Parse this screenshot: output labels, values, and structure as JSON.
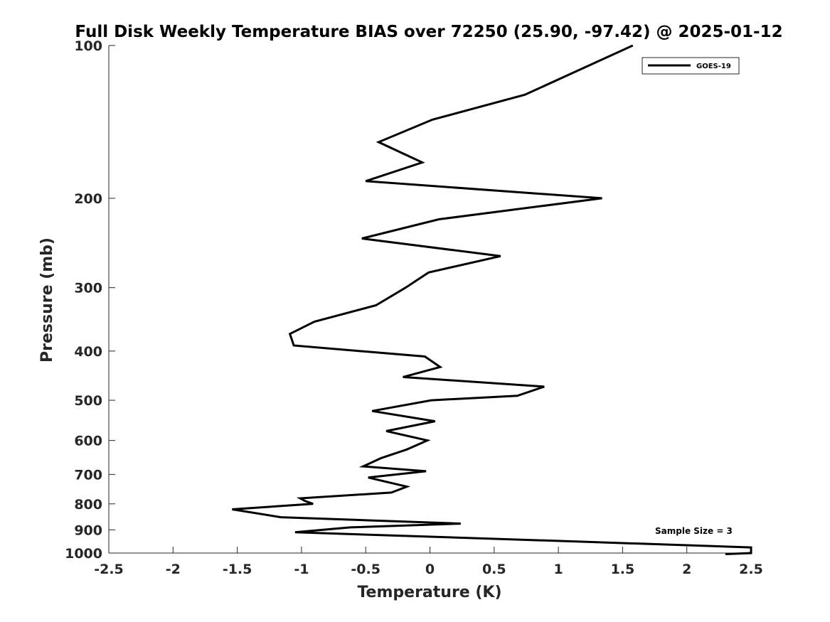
{
  "chart_data": {
    "type": "line",
    "title": "Full Disk Weekly Temperature BIAS over 72250 (25.90, -97.42) @ 2025-01-12",
    "xlabel": "Temperature (K)",
    "ylabel": "Pressure (mb)",
    "xlim": [
      -2.5,
      2.5
    ],
    "ylim": [
      100,
      1000
    ],
    "y_scale": "log",
    "y_direction": "reversed",
    "x_ticks": [
      "-2.5",
      "-2",
      "-1.5",
      "-1",
      "-0.5",
      "0",
      "0.5",
      "1",
      "1.5",
      "2",
      "2.5"
    ],
    "y_ticks": [
      "100",
      "200",
      "300",
      "400",
      "500",
      "600",
      "700",
      "800",
      "900",
      "1000"
    ],
    "grid": false,
    "legend_position": "top-right",
    "annotation": "Sample Size = 3",
    "line_color": "#000000",
    "series": [
      {
        "name": "GOES-19",
        "x": [
          1.58,
          0.74,
          0.02,
          -0.4,
          -0.06,
          -0.5,
          1.34,
          0.07,
          -0.53,
          0.55,
          -0.01,
          -0.19,
          -0.42,
          -0.9,
          -1.09,
          -1.06,
          -0.04,
          0.08,
          -0.21,
          0.89,
          0.68,
          0.01,
          -0.45,
          0.04,
          -0.34,
          -0.02,
          -0.18,
          -0.38,
          -0.52,
          -0.03,
          -0.48,
          -0.18,
          -0.3,
          -1.01,
          -0.97,
          -0.91,
          -1.54,
          -1.16,
          0.24,
          -0.62,
          -1.05,
          1.2,
          2.5,
          2.5,
          2.3
        ],
        "y": [
          100,
          125,
          140,
          155,
          170,
          185,
          200,
          220,
          240,
          260,
          280,
          300,
          325,
          350,
          370,
          390,
          410,
          430,
          450,
          470,
          490,
          500,
          525,
          550,
          575,
          600,
          625,
          650,
          675,
          690,
          710,
          740,
          760,
          780,
          790,
          800,
          820,
          850,
          875,
          890,
          910,
          950,
          975,
          1000,
          1005
        ]
      }
    ]
  }
}
